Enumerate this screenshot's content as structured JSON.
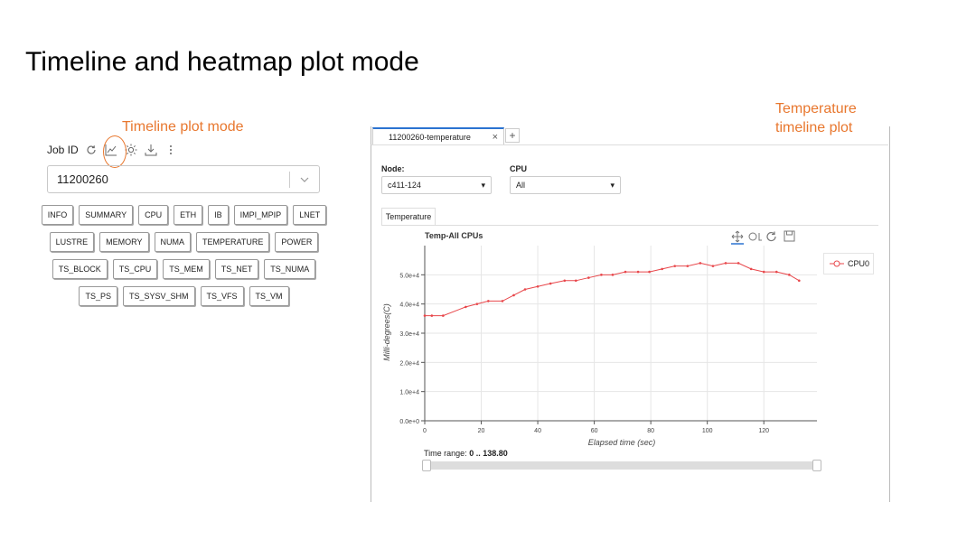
{
  "slide_title": "Timeline and heatmap plot mode",
  "annotations": {
    "timeline_mode": "Timeline plot mode",
    "temperature_plot": "Temperature timeline plot"
  },
  "job_panel": {
    "label": "Job ID",
    "job_value": "11200260",
    "button_rows": [
      [
        "INFO",
        "SUMMARY",
        "CPU",
        "ETH",
        "IB",
        "IMPI_MPIP",
        "LNET"
      ],
      [
        "LUSTRE",
        "MEMORY",
        "NUMA",
        "TEMPERATURE",
        "POWER"
      ],
      [
        "TS_BLOCK",
        "TS_CPU",
        "TS_MEM",
        "TS_NET",
        "TS_NUMA"
      ],
      [
        "TS_PS",
        "TS_SYSV_SHM",
        "TS_VFS",
        "TS_VM"
      ]
    ]
  },
  "tab": {
    "label": "11200260-temperature",
    "close": "×",
    "add": "+"
  },
  "filters": {
    "node_label": "Node:",
    "node_value": "c411-124",
    "cpu_label": "CPU",
    "cpu_value": "All"
  },
  "subtab": "Temperature",
  "toolbar_icons": [
    "pan-icon",
    "wheel-zoom-icon",
    "reset-icon",
    "save-icon"
  ],
  "range": {
    "label": "Time range:",
    "value": "0 .. 138.80"
  },
  "colors": {
    "accent": "#e8772e",
    "series": "#e8474b",
    "tab_active": "#2b73d1"
  },
  "chart_data": {
    "type": "line",
    "title": "Temp-All CPUs",
    "xlabel": "Elapsed time (sec)",
    "ylabel": "Milli-degrees(C)",
    "xlim": [
      0,
      138.8
    ],
    "ylim": [
      0,
      60000
    ],
    "xticks": [
      0,
      20,
      40,
      60,
      80,
      100,
      120
    ],
    "yticks": [
      0,
      10000,
      20000,
      30000,
      40000,
      50000
    ],
    "ytick_labels": [
      "0.0e+0",
      "1.0e+4",
      "2.0e+4",
      "3.0e+4",
      "4.0e+4",
      "5.0e+4"
    ],
    "grid": true,
    "legend": "right",
    "series": [
      {
        "name": "CPU0",
        "x": [
          0,
          2.5,
          6.5,
          14.5,
          18.5,
          22.5,
          27.5,
          31.5,
          35.5,
          40,
          44.5,
          49.5,
          53.5,
          58,
          62.5,
          66.5,
          71,
          75.5,
          79.5,
          84,
          88.5,
          93,
          97.5,
          102,
          106.5,
          111,
          115.5,
          120,
          124.5,
          129,
          132.5
        ],
        "y": [
          36000,
          36000,
          36000,
          39000,
          40000,
          41000,
          41000,
          43000,
          45000,
          46000,
          47000,
          48000,
          48000,
          49000,
          50000,
          50000,
          51000,
          51000,
          51000,
          52000,
          53000,
          53000,
          54000,
          53000,
          54000,
          54000,
          52000,
          51000,
          51000,
          50000,
          48000
        ]
      }
    ]
  }
}
